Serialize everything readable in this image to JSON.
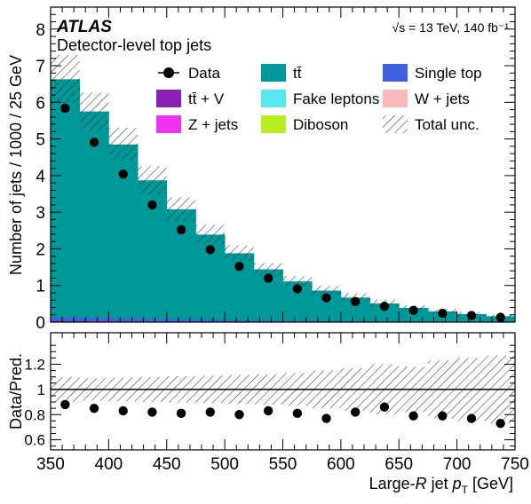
{
  "chart_data": {
    "type": "bar",
    "experiment": "ATLAS",
    "subtitle": "Detector-level top jets",
    "energy_label": "√s = 13 TeV, 140 fb⁻¹",
    "ylabel": "Number of jets / 1000 / 25 GeV",
    "ratio_ylabel": "Data/Pred.",
    "xlabel": "Large-R jet p_T [GeV]",
    "xlim": [
      350,
      750
    ],
    "ylim": [
      0,
      8.6
    ],
    "ratio_ylim": [
      0.52,
      1.45
    ],
    "xticks": [
      350,
      400,
      450,
      500,
      550,
      600,
      650,
      700,
      750
    ],
    "yticks": [
      0,
      1,
      2,
      3,
      4,
      5,
      6,
      7,
      8
    ],
    "ratio_yticks": [
      0.6,
      0.8,
      1,
      1.2
    ],
    "ratio_yticklabels": [
      "0.6",
      "0.8",
      "1",
      "1.2"
    ],
    "bin_edges": [
      350,
      375,
      400,
      425,
      450,
      475,
      500,
      525,
      550,
      575,
      600,
      625,
      650,
      675,
      700,
      725,
      750
    ],
    "stack_total": [
      6.63,
      5.75,
      4.85,
      3.87,
      3.08,
      2.39,
      1.88,
      1.44,
      1.11,
      0.86,
      0.67,
      0.51,
      0.39,
      0.29,
      0.22,
      0.16
    ],
    "stack_components": [
      {
        "name": "ttbar+V",
        "values": [
          0.03,
          0.025,
          0.02,
          0.015,
          0.012,
          0.01,
          0.008,
          0.006,
          0.005,
          0.004,
          0.003,
          0.002,
          0.002,
          0.001,
          0.001,
          0.001
        ]
      },
      {
        "name": "Single top",
        "values": [
          0.1,
          0.09,
          0.08,
          0.07,
          0.06,
          0.05,
          0.04,
          0.03,
          0.025,
          0.02,
          0.015,
          0.012,
          0.01,
          0.008,
          0.006,
          0.005
        ]
      }
    ],
    "unc_rel": [
      0.1,
      0.09,
      0.095,
      0.1,
      0.105,
      0.11,
      0.115,
      0.12,
      0.13,
      0.15,
      0.17,
      0.2,
      0.18,
      0.23,
      0.25,
      0.27
    ],
    "data": [
      5.84,
      4.91,
      4.04,
      3.2,
      2.52,
      1.98,
      1.52,
      1.2,
      0.91,
      0.66,
      0.56,
      0.43,
      0.32,
      0.24,
      0.18,
      0.13
    ],
    "ratio": [
      0.88,
      0.85,
      0.83,
      0.82,
      0.81,
      0.82,
      0.8,
      0.83,
      0.81,
      0.77,
      0.82,
      0.86,
      0.79,
      0.79,
      0.77,
      0.73
    ],
    "legend": [
      {
        "label": "Data",
        "kind": "data"
      },
      {
        "label": "tt̄",
        "kind": "ttbar",
        "color": "#009999"
      },
      {
        "label": "Single top",
        "kind": "box",
        "color": "#4060dd"
      },
      {
        "label": "tt̄ + V",
        "kind": "box",
        "color": "#8b21b4"
      },
      {
        "label": "Fake leptons",
        "kind": "box",
        "color": "#55e8ee"
      },
      {
        "label": "W + jets",
        "kind": "box",
        "color": "#f7bbbb"
      },
      {
        "label": "Z + jets",
        "kind": "box",
        "color": "#ee33ee"
      },
      {
        "label": "Diboson",
        "kind": "box",
        "color": "#bbee22"
      },
      {
        "label": "Total unc.",
        "kind": "hatch"
      }
    ],
    "colors": {
      "ttbar": "#009999",
      "single_top": "#4060dd",
      "ttbarV": "#8b21b4",
      "data": "#000000"
    }
  }
}
